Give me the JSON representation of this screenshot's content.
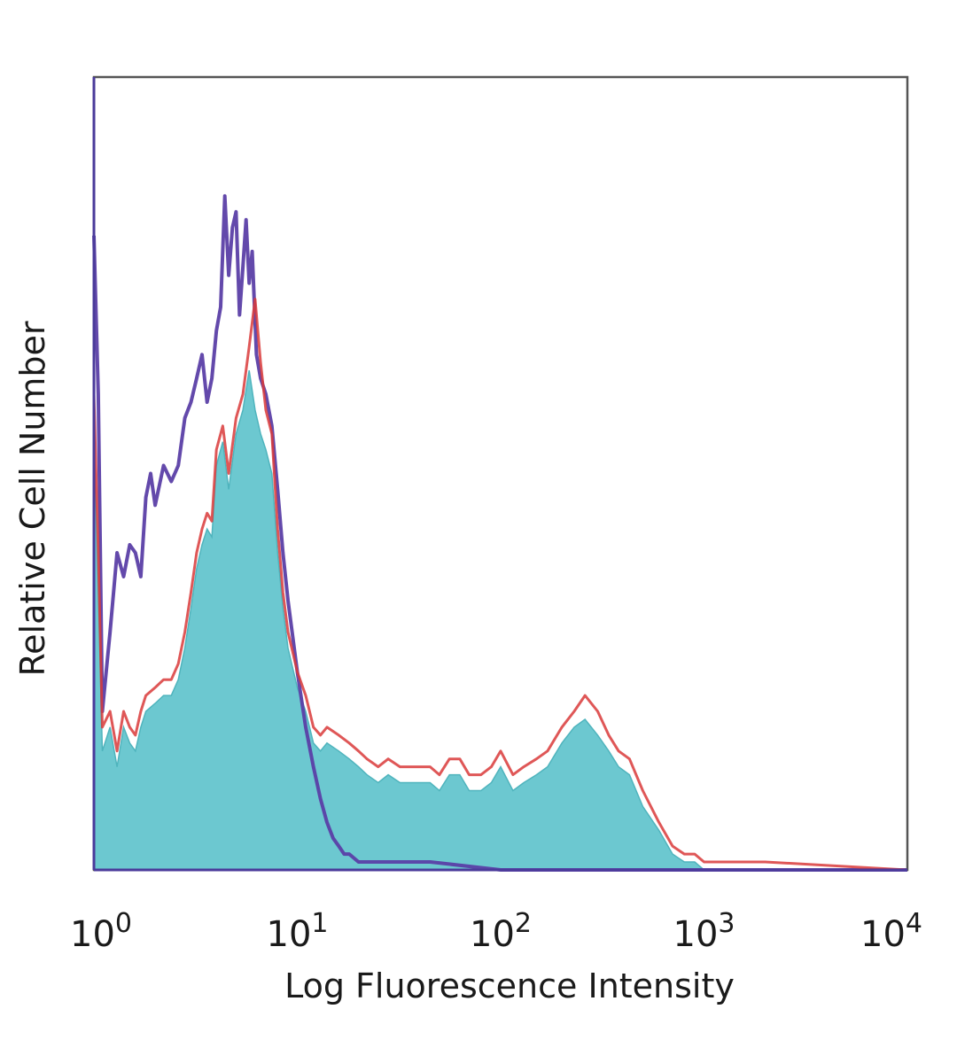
{
  "chart_data": {
    "type": "area",
    "title": "",
    "xlabel": "Log Fluorescence Intensity",
    "ylabel": "Relative Cell Number",
    "x_scale": "log10",
    "xlim": [
      1,
      10000
    ],
    "ylim": [
      0,
      100
    ],
    "grid": false,
    "legend": "none",
    "x_ticks": [
      {
        "value": 1,
        "base": "10",
        "exp": "0"
      },
      {
        "value": 10,
        "base": "10",
        "exp": "1"
      },
      {
        "value": 100,
        "base": "10",
        "exp": "2"
      },
      {
        "value": 1000,
        "base": "10",
        "exp": "3"
      },
      {
        "value": 10000,
        "base": "10",
        "exp": "4"
      }
    ],
    "series": [
      {
        "color": "#5b3fa6",
        "style": "line",
        "x": [
          1.0,
          1.05,
          1.1,
          1.2,
          1.3,
          1.4,
          1.5,
          1.6,
          1.7,
          1.8,
          1.9,
          2.0,
          2.2,
          2.4,
          2.6,
          2.8,
          3.0,
          3.2,
          3.4,
          3.6,
          3.8,
          4.0,
          4.2,
          4.4,
          4.6,
          4.8,
          5.0,
          5.2,
          5.4,
          5.6,
          5.8,
          6.0,
          6.3,
          6.6,
          7.0,
          7.5,
          8.0,
          8.5,
          9.0,
          10.0,
          11.0,
          12.0,
          13.0,
          14.0,
          15.0,
          16.0,
          17.0,
          18.0,
          20.0,
          23.0,
          28.0,
          35.0,
          45.0,
          100.0,
          1000.0,
          10000.0
        ],
        "y": [
          80,
          60,
          20,
          30,
          40,
          37,
          41,
          40,
          37,
          47,
          50,
          46,
          51,
          49,
          51,
          57,
          59,
          62,
          65,
          59,
          62,
          68,
          71,
          85,
          75,
          81,
          83,
          70,
          76,
          82,
          74,
          78,
          65,
          62,
          60,
          56,
          48,
          40,
          34,
          25,
          18,
          13,
          9,
          6,
          4,
          3,
          2,
          2,
          1,
          1,
          1,
          1,
          1,
          0,
          0,
          0
        ]
      },
      {
        "color": "#d93a3a",
        "style": "line",
        "x": [
          1.0,
          1.05,
          1.1,
          1.2,
          1.3,
          1.4,
          1.5,
          1.6,
          1.7,
          1.8,
          2.0,
          2.2,
          2.4,
          2.6,
          2.8,
          3.0,
          3.2,
          3.4,
          3.6,
          3.8,
          4.0,
          4.3,
          4.6,
          5.0,
          5.4,
          5.8,
          6.2,
          6.6,
          7.0,
          7.5,
          8.0,
          8.5,
          9.0,
          10.0,
          11.0,
          12.0,
          13.0,
          14.0,
          16.0,
          18.0,
          20.0,
          22.0,
          25.0,
          28.0,
          32.0,
          36.0,
          40.0,
          45.0,
          50.0,
          56.0,
          63.0,
          70.0,
          80.0,
          90.0,
          100.0,
          115.0,
          130.0,
          150.0,
          170.0,
          200.0,
          230.0,
          260.0,
          300.0,
          340.0,
          380.0,
          430.0,
          500.0,
          600.0,
          700.0,
          800.0,
          900.0,
          1000.0,
          1500.0,
          2000.0,
          10000.0
        ],
        "y": [
          60,
          40,
          18,
          20,
          15,
          20,
          18,
          17,
          20,
          22,
          23,
          24,
          24,
          26,
          30,
          35,
          40,
          43,
          45,
          44,
          53,
          56,
          50,
          57,
          60,
          66,
          72,
          64,
          58,
          55,
          43,
          35,
          30,
          25,
          22,
          18,
          17,
          18,
          17,
          16,
          15,
          14,
          13,
          14,
          13,
          13,
          13,
          13,
          12,
          14,
          14,
          12,
          12,
          13,
          15,
          12,
          13,
          14,
          15,
          18,
          20,
          22,
          20,
          17,
          15,
          14,
          10,
          6,
          3,
          2,
          2,
          1,
          1,
          1,
          0
        ]
      },
      {
        "color": "#6cc8d0",
        "style": "filled",
        "x": [
          1.0,
          1.05,
          1.1,
          1.2,
          1.3,
          1.4,
          1.5,
          1.6,
          1.7,
          1.8,
          2.0,
          2.2,
          2.4,
          2.6,
          2.8,
          3.0,
          3.2,
          3.4,
          3.6,
          3.8,
          4.0,
          4.3,
          4.6,
          5.0,
          5.4,
          5.8,
          6.2,
          6.6,
          7.0,
          7.5,
          8.0,
          8.5,
          9.0,
          10.0,
          11.0,
          12.0,
          13.0,
          14.0,
          16.0,
          18.0,
          20.0,
          22.0,
          25.0,
          28.0,
          32.0,
          36.0,
          40.0,
          45.0,
          50.0,
          56.0,
          63.0,
          70.0,
          80.0,
          90.0,
          100.0,
          115.0,
          130.0,
          150.0,
          170.0,
          200.0,
          230.0,
          260.0,
          300.0,
          340.0,
          380.0,
          430.0,
          500.0,
          600.0,
          700.0,
          800.0,
          900.0,
          1000.0,
          10000.0
        ],
        "y": [
          55,
          35,
          15,
          18,
          13,
          18,
          16,
          15,
          18,
          20,
          21,
          22,
          22,
          24,
          28,
          33,
          38,
          41,
          43,
          42,
          51,
          54,
          48,
          55,
          58,
          63,
          58,
          55,
          53,
          50,
          40,
          33,
          28,
          23,
          20,
          16,
          15,
          16,
          15,
          14,
          13,
          12,
          11,
          12,
          11,
          11,
          11,
          11,
          10,
          12,
          12,
          10,
          10,
          11,
          13,
          10,
          11,
          12,
          13,
          16,
          18,
          19,
          17,
          15,
          13,
          12,
          8,
          5,
          2,
          1,
          1,
          0,
          0
        ]
      }
    ]
  }
}
